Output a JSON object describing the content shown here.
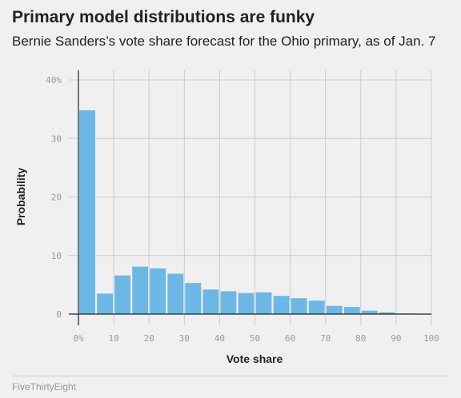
{
  "title": "Primary model distributions are funky",
  "subtitle": "Bernie Sanders’s vote share forecast for the Ohio primary, as of Jan. 7",
  "footer": "FiveThirtyEight",
  "colors": {
    "bar": "#6bb7e5",
    "grid": "#cccccc",
    "axis": "#222222",
    "background": "#f0f0f0"
  },
  "chart_data": {
    "type": "bar",
    "xlabel": "Vote share",
    "ylabel": "Probability",
    "x_unit": "%",
    "y_unit": "%",
    "xlim": [
      0,
      100
    ],
    "ylim": [
      0,
      40
    ],
    "x_ticks": [
      0,
      10,
      20,
      30,
      40,
      50,
      60,
      70,
      80,
      90,
      100
    ],
    "x_tick_labels": [
      "0%",
      "10",
      "20",
      "30",
      "40",
      "50",
      "60",
      "70",
      "80",
      "90",
      "100"
    ],
    "y_ticks": [
      0,
      10,
      20,
      30,
      40
    ],
    "y_tick_labels": [
      "0",
      "10",
      "20",
      "30",
      "40%"
    ],
    "grid": true,
    "bin_width": 5,
    "bins": [
      0,
      5,
      10,
      15,
      20,
      25,
      30,
      35,
      40,
      45,
      50,
      55,
      60,
      65,
      70,
      75,
      80,
      85,
      90,
      95
    ],
    "values": [
      34.8,
      3.5,
      6.6,
      8.1,
      7.8,
      6.9,
      5.3,
      4.2,
      3.9,
      3.6,
      3.7,
      3.1,
      2.7,
      2.3,
      1.4,
      1.2,
      0.6,
      0.3,
      0.1,
      0.05
    ]
  }
}
